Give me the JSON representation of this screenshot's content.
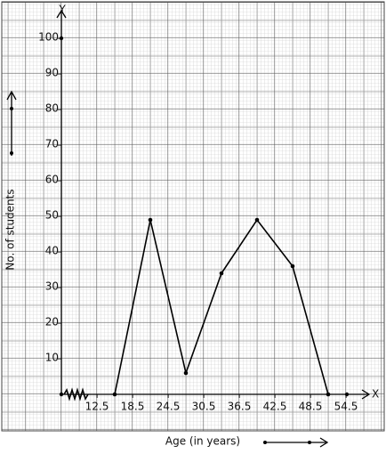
{
  "chart_data": {
    "type": "line",
    "xlabel": "Age (in years)",
    "ylabel": "No. of students",
    "x_axis_name": "X",
    "y_axis_name": "Y",
    "x": [
      15.5,
      21.5,
      27.5,
      33.5,
      39.5,
      45.5,
      51.5
    ],
    "series": [
      {
        "color": "#000000",
        "values": [
          0,
          49,
          6,
          34,
          49,
          36,
          0
        ]
      }
    ],
    "xlim": [
      6.5,
      57.5
    ],
    "xticks": [
      12.5,
      18.5,
      24.5,
      30.5,
      36.5,
      42.5,
      48.5,
      54.5
    ],
    "ylim": [
      0,
      108
    ],
    "yticks": [
      10,
      20,
      30,
      40,
      50,
      60,
      70,
      80,
      90,
      100
    ],
    "grid": true
  }
}
